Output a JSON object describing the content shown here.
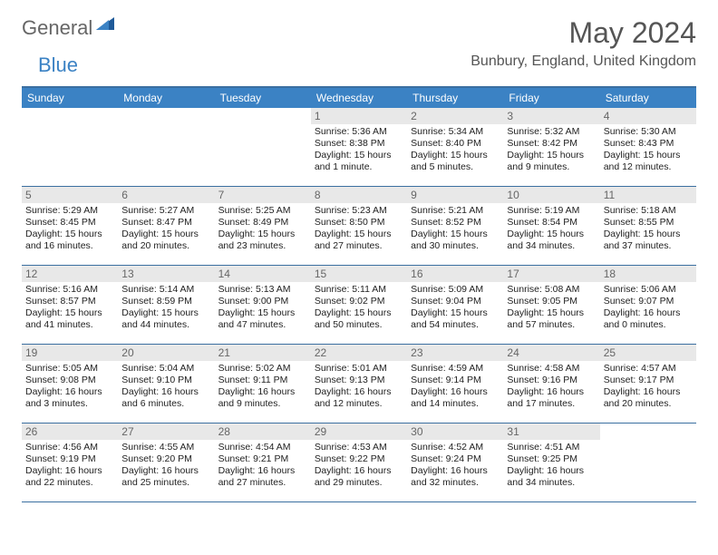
{
  "logo": {
    "text1": "General",
    "text2": "Blue"
  },
  "title": "May 2024",
  "location": "Bunbury, England, United Kingdom",
  "colors": {
    "header_bg": "#3b82c4",
    "border": "#3b6fa0",
    "daynum_bg": "#e8e8e8",
    "text": "#333333",
    "muted": "#666666"
  },
  "dow": [
    "Sunday",
    "Monday",
    "Tuesday",
    "Wednesday",
    "Thursday",
    "Friday",
    "Saturday"
  ],
  "weeks": [
    [
      null,
      null,
      null,
      {
        "n": "1",
        "sunrise": "Sunrise: 5:36 AM",
        "sunset": "Sunset: 8:38 PM",
        "daylight": "Daylight: 15 hours and 1 minute."
      },
      {
        "n": "2",
        "sunrise": "Sunrise: 5:34 AM",
        "sunset": "Sunset: 8:40 PM",
        "daylight": "Daylight: 15 hours and 5 minutes."
      },
      {
        "n": "3",
        "sunrise": "Sunrise: 5:32 AM",
        "sunset": "Sunset: 8:42 PM",
        "daylight": "Daylight: 15 hours and 9 minutes."
      },
      {
        "n": "4",
        "sunrise": "Sunrise: 5:30 AM",
        "sunset": "Sunset: 8:43 PM",
        "daylight": "Daylight: 15 hours and 12 minutes."
      }
    ],
    [
      {
        "n": "5",
        "sunrise": "Sunrise: 5:29 AM",
        "sunset": "Sunset: 8:45 PM",
        "daylight": "Daylight: 15 hours and 16 minutes."
      },
      {
        "n": "6",
        "sunrise": "Sunrise: 5:27 AM",
        "sunset": "Sunset: 8:47 PM",
        "daylight": "Daylight: 15 hours and 20 minutes."
      },
      {
        "n": "7",
        "sunrise": "Sunrise: 5:25 AM",
        "sunset": "Sunset: 8:49 PM",
        "daylight": "Daylight: 15 hours and 23 minutes."
      },
      {
        "n": "8",
        "sunrise": "Sunrise: 5:23 AM",
        "sunset": "Sunset: 8:50 PM",
        "daylight": "Daylight: 15 hours and 27 minutes."
      },
      {
        "n": "9",
        "sunrise": "Sunrise: 5:21 AM",
        "sunset": "Sunset: 8:52 PM",
        "daylight": "Daylight: 15 hours and 30 minutes."
      },
      {
        "n": "10",
        "sunrise": "Sunrise: 5:19 AM",
        "sunset": "Sunset: 8:54 PM",
        "daylight": "Daylight: 15 hours and 34 minutes."
      },
      {
        "n": "11",
        "sunrise": "Sunrise: 5:18 AM",
        "sunset": "Sunset: 8:55 PM",
        "daylight": "Daylight: 15 hours and 37 minutes."
      }
    ],
    [
      {
        "n": "12",
        "sunrise": "Sunrise: 5:16 AM",
        "sunset": "Sunset: 8:57 PM",
        "daylight": "Daylight: 15 hours and 41 minutes."
      },
      {
        "n": "13",
        "sunrise": "Sunrise: 5:14 AM",
        "sunset": "Sunset: 8:59 PM",
        "daylight": "Daylight: 15 hours and 44 minutes."
      },
      {
        "n": "14",
        "sunrise": "Sunrise: 5:13 AM",
        "sunset": "Sunset: 9:00 PM",
        "daylight": "Daylight: 15 hours and 47 minutes."
      },
      {
        "n": "15",
        "sunrise": "Sunrise: 5:11 AM",
        "sunset": "Sunset: 9:02 PM",
        "daylight": "Daylight: 15 hours and 50 minutes."
      },
      {
        "n": "16",
        "sunrise": "Sunrise: 5:09 AM",
        "sunset": "Sunset: 9:04 PM",
        "daylight": "Daylight: 15 hours and 54 minutes."
      },
      {
        "n": "17",
        "sunrise": "Sunrise: 5:08 AM",
        "sunset": "Sunset: 9:05 PM",
        "daylight": "Daylight: 15 hours and 57 minutes."
      },
      {
        "n": "18",
        "sunrise": "Sunrise: 5:06 AM",
        "sunset": "Sunset: 9:07 PM",
        "daylight": "Daylight: 16 hours and 0 minutes."
      }
    ],
    [
      {
        "n": "19",
        "sunrise": "Sunrise: 5:05 AM",
        "sunset": "Sunset: 9:08 PM",
        "daylight": "Daylight: 16 hours and 3 minutes."
      },
      {
        "n": "20",
        "sunrise": "Sunrise: 5:04 AM",
        "sunset": "Sunset: 9:10 PM",
        "daylight": "Daylight: 16 hours and 6 minutes."
      },
      {
        "n": "21",
        "sunrise": "Sunrise: 5:02 AM",
        "sunset": "Sunset: 9:11 PM",
        "daylight": "Daylight: 16 hours and 9 minutes."
      },
      {
        "n": "22",
        "sunrise": "Sunrise: 5:01 AM",
        "sunset": "Sunset: 9:13 PM",
        "daylight": "Daylight: 16 hours and 12 minutes."
      },
      {
        "n": "23",
        "sunrise": "Sunrise: 4:59 AM",
        "sunset": "Sunset: 9:14 PM",
        "daylight": "Daylight: 16 hours and 14 minutes."
      },
      {
        "n": "24",
        "sunrise": "Sunrise: 4:58 AM",
        "sunset": "Sunset: 9:16 PM",
        "daylight": "Daylight: 16 hours and 17 minutes."
      },
      {
        "n": "25",
        "sunrise": "Sunrise: 4:57 AM",
        "sunset": "Sunset: 9:17 PM",
        "daylight": "Daylight: 16 hours and 20 minutes."
      }
    ],
    [
      {
        "n": "26",
        "sunrise": "Sunrise: 4:56 AM",
        "sunset": "Sunset: 9:19 PM",
        "daylight": "Daylight: 16 hours and 22 minutes."
      },
      {
        "n": "27",
        "sunrise": "Sunrise: 4:55 AM",
        "sunset": "Sunset: 9:20 PM",
        "daylight": "Daylight: 16 hours and 25 minutes."
      },
      {
        "n": "28",
        "sunrise": "Sunrise: 4:54 AM",
        "sunset": "Sunset: 9:21 PM",
        "daylight": "Daylight: 16 hours and 27 minutes."
      },
      {
        "n": "29",
        "sunrise": "Sunrise: 4:53 AM",
        "sunset": "Sunset: 9:22 PM",
        "daylight": "Daylight: 16 hours and 29 minutes."
      },
      {
        "n": "30",
        "sunrise": "Sunrise: 4:52 AM",
        "sunset": "Sunset: 9:24 PM",
        "daylight": "Daylight: 16 hours and 32 minutes."
      },
      {
        "n": "31",
        "sunrise": "Sunrise: 4:51 AM",
        "sunset": "Sunset: 9:25 PM",
        "daylight": "Daylight: 16 hours and 34 minutes."
      },
      null
    ]
  ]
}
